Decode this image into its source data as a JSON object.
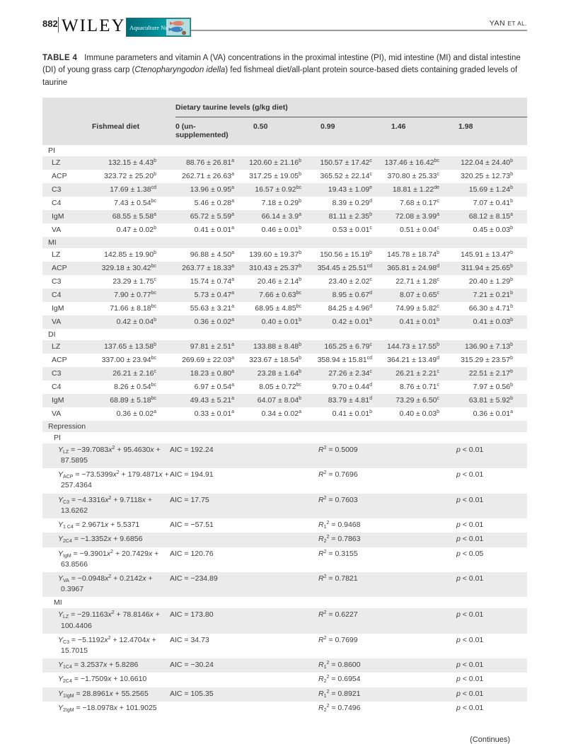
{
  "page": {
    "number": "882",
    "publisher": "WILEY",
    "journal": "Aquaculture Nutrition",
    "running_head": {
      "name": "YAN",
      "etal": "ET AL."
    },
    "continues": "(Continues)"
  },
  "colors": {
    "banner_teal_dark": "#006b75",
    "banner_teal_light": "#35a9b0",
    "stripe_gray": "#ebebeb",
    "header_gray": "#e2e2e2"
  },
  "caption": {
    "label": "TABLE 4",
    "part1": "Immune parameters and vitamin A (VA) concentrations in the proximal intestine (PI), mid intestine (MI) and distal intestine (DI) of young grass carp (",
    "species": "Ctenopharyngodon idella",
    "part2": ") fed fishmeal diet/all-plant protein source-based diets containing graded levels of taurine"
  },
  "table": {
    "span_header": "Dietary taurine levels (g/kg diet)",
    "columns": [
      "Fishmeal diet",
      "0 (un-supplemented)",
      "0.50",
      "0.99",
      "1.46",
      "1.98"
    ],
    "sections": [
      {
        "label": "PI",
        "rows": [
          {
            "label": "LZ",
            "values": [
              "132.15 ± 4.43^{b}",
              "88.76 ± 26.81^{a}",
              "120.60 ± 21.16^{b}",
              "150.57 ± 17.42^{c}",
              "137.46 ± 16.42^{bc}",
              "122.04 ± 24.40^{b}"
            ]
          },
          {
            "label": "ACP",
            "values": [
              "323.72 ± 25.20^{b}",
              "262.71 ± 26.63^{a}",
              "317.25 ± 19.05^{b}",
              "365.52 ± 22.14^{c}",
              "370.80 ± 25.33^{c}",
              "320.25 ± 12.73^{b}"
            ]
          },
          {
            "label": "C3",
            "values": [
              "17.69 ± 1.38^{cd}",
              "13.96 ± 0.95^{a}",
              "16.57 ± 0.92^{bc}",
              "19.43 ± 1.09^{e}",
              "18.81 ± 1.22^{de}",
              "15.69 ± 1.24^{b}"
            ]
          },
          {
            "label": "C4",
            "values": [
              "7.43 ± 0.54^{bc}",
              "5.46 ± 0.28^{a}",
              "7.18 ± 0.29^{b}",
              "8.39 ± 0.29^{d}",
              "7.68 ± 0.17^{c}",
              "7.07 ± 0.41^{b}"
            ]
          },
          {
            "label": "IgM",
            "values": [
              "68.55 ± 5.58^{a}",
              "65.72 ± 5.59^{a}",
              "66.14 ± 3.9^{a}",
              "81.11 ± 2.35^{b}",
              "72.08 ± 3.99^{a}",
              "68.12 ± 8.15^{a}"
            ]
          },
          {
            "label": "VA",
            "values": [
              "0.47 ± 0.02^{b}",
              "0.41 ± 0.01^{a}",
              "0.46 ± 0.01^{b}",
              "0.53 ± 0.01^{c}",
              "0.51 ± 0.04^{c}",
              "0.45 ± 0.03^{b}"
            ]
          }
        ]
      },
      {
        "label": "MI",
        "rows": [
          {
            "label": "LZ",
            "values": [
              "142.85 ± 19.90^{b}",
              "96.88 ± 4.50^{a}",
              "139.60 ± 19.37^{b}",
              "150.56 ± 15.19^{b}",
              "145.78 ± 18.74^{b}",
              "145.91 ± 13.47^{b}"
            ]
          },
          {
            "label": "ACP",
            "values": [
              "329.18 ± 30.42^{bc}",
              "263.77 ± 18.33^{a}",
              "310.43 ± 25.37^{b}",
              "354.45 ± 25.51^{cd}",
              "365.81 ± 24.98^{d}",
              "311.94 ± 25.65^{b}"
            ]
          },
          {
            "label": "C3",
            "values": [
              "23.29 ± 1.75^{c}",
              "15.74 ± 0.74^{a}",
              "20.46 ± 2.14^{b}",
              "23.40 ± 2.02^{c}",
              "22.71 ± 1.28^{c}",
              "20.40 ± 1.29^{b}"
            ]
          },
          {
            "label": "C4",
            "values": [
              "7.90 ± 0.77^{bc}",
              "5.73 ± 0.47^{a}",
              "7.66 ± 0.63^{bc}",
              "8.95 ± 0.67^{d}",
              "8.07 ± 0.65^{c}",
              "7.21 ± 0.21^{b}"
            ]
          },
          {
            "label": "IgM",
            "values": [
              "71.66 ± 8.18^{bc}",
              "55.63 ± 3.21^{a}",
              "68.95 ± 4.85^{bc}",
              "84.25 ± 4.96^{d}",
              "74.99 ± 5.82^{c}",
              "66.30 ± 4.71^{b}"
            ]
          },
          {
            "label": "VA",
            "values": [
              "0.42 ± 0.04^{b}",
              "0.36 ± 0.02^{a}",
              "0.40 ± 0.01^{b}",
              "0.42 ± 0.01^{b}",
              "0.41 ± 0.01^{b}",
              "0.41 ± 0.03^{b}"
            ]
          }
        ]
      },
      {
        "label": "DI",
        "rows": [
          {
            "label": "LZ",
            "values": [
              "137.65 ± 13.58^{b}",
              "97.81 ± 2.51^{a}",
              "133.88 ± 8.48^{b}",
              "165.25 ± 6.79^{c}",
              "144.73 ± 17.55^{b}",
              "136.90 ± 7.13^{b}"
            ]
          },
          {
            "label": "ACP",
            "values": [
              "337.00 ± 23.94^{bc}",
              "269.69 ± 22.03^{a}",
              "323.67 ± 18.54^{b}",
              "358.94 ± 15.81^{cd}",
              "364.21 ± 13.49^{d}",
              "315.29 ± 23.57^{b}"
            ]
          },
          {
            "label": "C3",
            "values": [
              "26.21 ± 2.16^{c}",
              "18.23 ± 0.80^{a}",
              "23.28 ± 1.64^{b}",
              "27.26 ± 2.34^{c}",
              "26.21 ± 2.21^{c}",
              "22.51 ± 2.17^{b}"
            ]
          },
          {
            "label": "C4",
            "values": [
              "8.26 ± 0.54^{bc}",
              "6.97 ± 0.54^{a}",
              "8.05 ± 0.72^{bc}",
              "9.70 ± 0.44^{d}",
              "8.76 ± 0.71^{c}",
              "7.97 ± 0.56^{b}"
            ]
          },
          {
            "label": "IgM",
            "values": [
              "68.89 ± 5.18^{bc}",
              "49.43 ± 5.21^{a}",
              "64.07 ± 8.04^{b}",
              "83.79 ± 4.81^{d}",
              "73.29 ± 6.50^{c}",
              "63.81 ± 5.92^{b}"
            ]
          },
          {
            "label": "VA",
            "values": [
              "0.36 ± 0.02^{a}",
              "0.33 ± 0.01^{a}",
              "0.34 ± 0.02^{a}",
              "0.41 ± 0.01^{b}",
              "0.40 ± 0.03^{b}",
              "0.36 ± 0.01^{a}"
            ]
          }
        ]
      }
    ],
    "regression_label": "Repression",
    "regression_sections": [
      {
        "label": "PI",
        "rows": [
          {
            "eq": "Y_{LZ} = −39.7083x^{2} + 95.4630x + 87.5895",
            "aic": "AIC = 192.24",
            "r2": "R^{2} = 0.5009",
            "p": "p < 0.01"
          },
          {
            "eq": "Y_{ACP} = −73.5399x^{2} + 179.4871x + 257.4364",
            "aic": "AIC = 194.91",
            "r2": "R^{2} = 0.7696",
            "p": "p < 0.01"
          },
          {
            "eq": "Y_{C3} = −4.3316x^{2} + 9.7118x + 13.6262",
            "aic": "AIC = 17.75",
            "r2": "R^{2} = 0.7603",
            "p": "p < 0.01"
          },
          {
            "eq": "Y_{1 C4} = 2.9671x + 5.5371",
            "aic": "AIC = −57.51",
            "r2": "R_{1}^{2} = 0.9468",
            "p": "p < 0.01"
          },
          {
            "eq": "Y_{2C4} = −1.3352x + 9.6856",
            "aic": "",
            "r2": "R_{2}^{2} = 0.7863",
            "p": "p < 0.01"
          },
          {
            "eq": "Y_{IgM} = −9.3901x^{2} + 20.7429x + 63.8566",
            "aic": "AIC = 120.76",
            "r2": "R^{2} = 0.3155",
            "p": "p < 0.05"
          },
          {
            "eq": "Y_{VA} = −0.0948x^{2} + 0.2142x + 0.3967",
            "aic": "AIC = −234.89",
            "r2": "R^{2} = 0.7821",
            "p": "p < 0.01"
          }
        ]
      },
      {
        "label": "MI",
        "rows": [
          {
            "eq": "Y_{LZ} = −29.1163x^{2} + 78.8146x + 100.4406",
            "aic": "AIC = 173.80",
            "r2": "R^{2} = 0.6227",
            "p": "p < 0.01"
          },
          {
            "eq": "Y_{C3} = −5.1192x^{2} + 12.4704x + 15.7015",
            "aic": "AIC = 34.73",
            "r2": "R^{2} = 0.7699",
            "p": "p < 0.01"
          },
          {
            "eq": "Y_{1C4} = 3.2537x + 5.8286",
            "aic": "AIC = −30.24",
            "r2": "R_{1}^{2} = 0.8600",
            "p": "p < 0.01"
          },
          {
            "eq": "Y_{2C4} = −1.7509x + 10.6610",
            "aic": "",
            "r2": "R_{2}^{2} = 0.6954",
            "p": "p < 0.01"
          },
          {
            "eq": "Y_{1IgM} = 28.8961x + 55.2565",
            "aic": "AIC = 105.35",
            "r2": "R_{1}^{2} = 0.8921",
            "p": "p < 0.01"
          },
          {
            "eq": "Y_{2IgM} = −18.0978x + 101.9025",
            "aic": "",
            "r2": "R_{2}^{2} = 0.7496",
            "p": "p < 0.01"
          }
        ]
      }
    ]
  }
}
